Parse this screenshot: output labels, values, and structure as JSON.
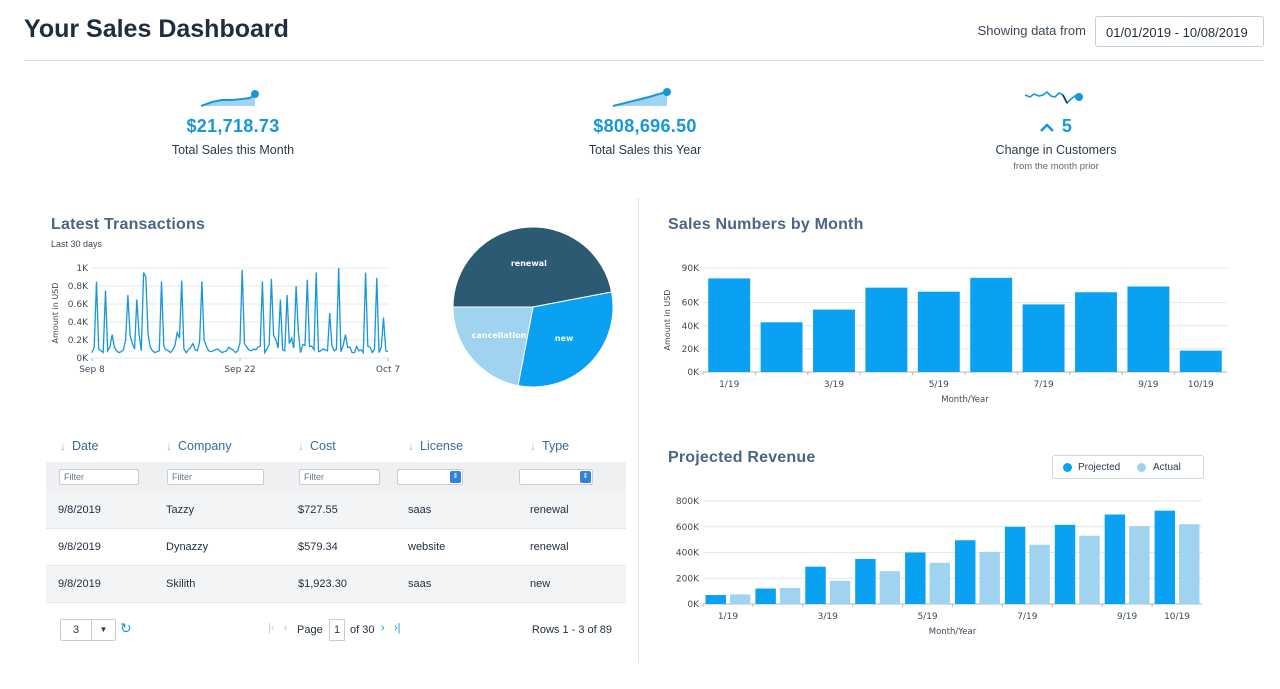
{
  "header": {
    "title": "Your Sales Dashboard",
    "date_label": "Showing data from",
    "date_range": "01/01/2019 - 10/08/2019"
  },
  "kpis": [
    {
      "value": "$21,718.73",
      "label": "Total Sales this Month",
      "sub": ""
    },
    {
      "value": "$808,696.50",
      "label": "Total Sales this Year",
      "sub": ""
    },
    {
      "value": "5",
      "label": "Change in Customers",
      "sub": "from the month prior"
    }
  ],
  "colors": {
    "accent": "#1697d9",
    "bar": "#0aa1f2",
    "bar_light": "#9fd3f0",
    "pie_dark": "#2d5a73",
    "title": "#4a6683"
  },
  "transactions": {
    "title": "Latest Transactions",
    "subtitle": "Last 30 days"
  },
  "sales_by_month": {
    "title": "Sales Numbers by Month"
  },
  "projected": {
    "title": "Projected Revenue",
    "legend_projected": "Projected",
    "legend_actual": "Actual"
  },
  "grid": {
    "columns": [
      "Date",
      "Company",
      "Cost",
      "License",
      "Type"
    ],
    "filter_placeholder": "Filter",
    "rows": [
      [
        "9/8/2019",
        "Tazzy",
        "$727.55",
        "saas",
        "renewal"
      ],
      [
        "9/8/2019",
        "Dynazzy",
        "$579.34",
        "website",
        "renewal"
      ],
      [
        "9/8/2019",
        "Skilith",
        "$1,923.30",
        "saas",
        "new"
      ]
    ]
  },
  "pager": {
    "page_size": "3",
    "page_label": "Page",
    "page_num": "1",
    "of_label": "of 30",
    "rows_info": "Rows 1 - 3 of 89"
  },
  "chart_data": [
    {
      "type": "line",
      "ylabel": "Amount in USD",
      "xlabel": "",
      "ylim": [
        0,
        1000
      ],
      "yticks": [
        "0K",
        "0.2K",
        "0.4K",
        "0.6K",
        "0.8K",
        "1K"
      ],
      "xticks": [
        "Sep 8",
        "Sep 22",
        "Oct 7"
      ],
      "values": [
        60,
        120,
        850,
        100,
        80,
        60,
        750,
        80,
        120,
        260,
        120,
        80,
        60,
        70,
        90,
        200,
        700,
        250,
        160,
        100,
        650,
        260,
        80,
        950,
        900,
        260,
        120,
        80,
        60,
        70,
        80,
        850,
        130,
        90,
        80,
        60,
        90,
        140,
        280,
        220,
        860,
        100,
        60,
        90,
        120,
        160,
        90,
        80,
        180,
        850,
        200,
        130,
        80,
        70,
        80,
        90,
        100,
        80,
        60,
        70,
        80,
        120,
        100,
        90,
        60,
        80,
        170,
        980,
        160,
        120,
        90,
        80,
        100,
        90,
        120,
        130,
        850,
        60,
        100,
        150,
        880,
        250,
        200,
        110,
        650,
        90,
        80,
        700,
        160,
        220,
        110,
        800,
        300,
        60,
        150,
        140,
        870,
        130,
        130,
        90,
        950,
        70,
        80,
        100,
        90,
        80,
        500,
        140,
        80,
        100,
        1000,
        70,
        140,
        260,
        120,
        120,
        60,
        60,
        130,
        80,
        90,
        60,
        950,
        130,
        120,
        60,
        100,
        890,
        60,
        120,
        450,
        80,
        70
      ]
    },
    {
      "type": "pie",
      "slices": [
        {
          "label": "renewal",
          "value": 47
        },
        {
          "label": "new",
          "value": 31
        },
        {
          "label": "cancellation",
          "value": 22
        }
      ]
    },
    {
      "type": "bar",
      "title": "",
      "ylabel": "Amount in USD",
      "xlabel": "Month/Year",
      "ylim": [
        0,
        90000
      ],
      "yticks": [
        "0K",
        "20K",
        "40K",
        "60K",
        "90K"
      ],
      "categories": [
        "1/19",
        "2/19",
        "3/19",
        "4/19",
        "5/19",
        "6/19",
        "7/19",
        "8/19",
        "9/19",
        "10/19"
      ],
      "category_labels": [
        "1/19",
        "",
        "3/19",
        "",
        "5/19",
        "",
        "7/19",
        "",
        "9/19",
        "10/19"
      ],
      "values": [
        81000,
        43000,
        54000,
        73000,
        69500,
        81500,
        58500,
        69000,
        74000,
        18500
      ]
    },
    {
      "type": "bar",
      "title": "",
      "xlabel": "Month/Year",
      "ylabel": "",
      "ylim": [
        0,
        800000
      ],
      "yticks": [
        "0K",
        "200K",
        "400K",
        "600K",
        "800K"
      ],
      "categories": [
        "1/19",
        "2/19",
        "3/19",
        "4/19",
        "5/19",
        "6/19",
        "7/19",
        "8/19",
        "9/19",
        "10/19"
      ],
      "category_labels": [
        "1/19",
        "",
        "3/19",
        "",
        "5/19",
        "",
        "7/19",
        "",
        "9/19",
        "10/19"
      ],
      "series": [
        {
          "name": "Projected",
          "values": [
            70000,
            120000,
            290000,
            350000,
            400000,
            495000,
            600000,
            615000,
            695000,
            725000
          ]
        },
        {
          "name": "Actual",
          "values": [
            75000,
            125000,
            180000,
            255000,
            320000,
            405000,
            460000,
            530000,
            605000,
            620000
          ]
        }
      ]
    }
  ]
}
